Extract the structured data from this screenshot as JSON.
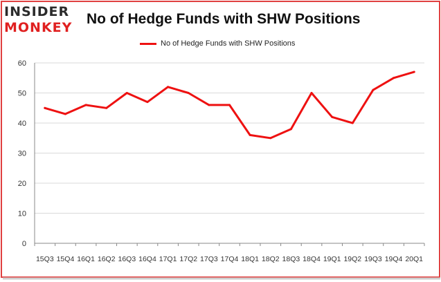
{
  "brand": {
    "line1": "INSIDER",
    "line2": "MONKEY"
  },
  "colors": {
    "series": "#ee1111",
    "grid": "#d9d9d9",
    "frame": "#e04040",
    "axis": "#888888"
  },
  "chart_data": {
    "type": "line",
    "title": "No of Hedge Funds with SHW Positions",
    "xlabel": "",
    "ylabel": "",
    "ylim": [
      0,
      60
    ],
    "yticks": [
      0,
      10,
      20,
      30,
      40,
      50,
      60
    ],
    "grid": true,
    "legend_position": "top-center",
    "categories": [
      "15Q3",
      "15Q4",
      "16Q1",
      "16Q2",
      "16Q3",
      "16Q4",
      "17Q1",
      "17Q2",
      "17Q3",
      "17Q4",
      "18Q1",
      "18Q2",
      "18Q3",
      "18Q4",
      "19Q1",
      "19Q2",
      "19Q3",
      "19Q4",
      "20Q1"
    ],
    "series": [
      {
        "name": "No of Hedge Funds with SHW Positions",
        "values": [
          45,
          43,
          46,
          45,
          50,
          47,
          52,
          50,
          46,
          46,
          36,
          35,
          38,
          50,
          42,
          40,
          51,
          55,
          57
        ]
      }
    ]
  }
}
